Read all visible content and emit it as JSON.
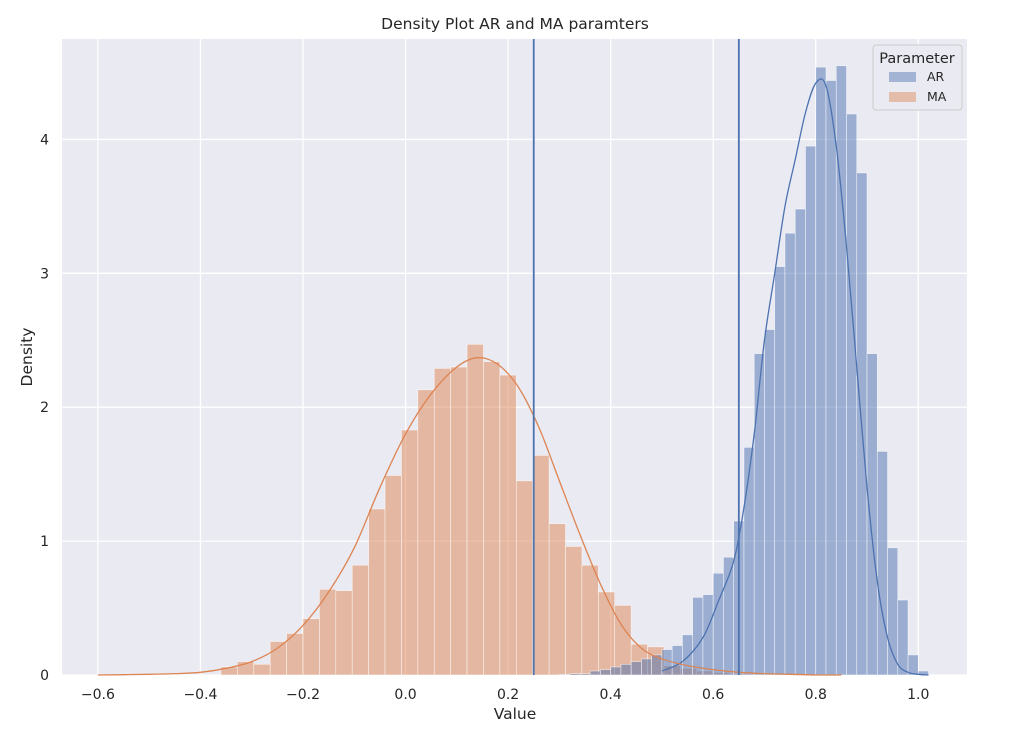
{
  "chart_data": {
    "type": "histogram",
    "title": "Density Plot AR and MA paramters",
    "xlabel": "Value",
    "ylabel": "Density",
    "xlim": [
      -0.67,
      1.095
    ],
    "ylim": [
      0,
      4.75
    ],
    "xticks": [
      -0.6,
      -0.4,
      -0.2,
      0.0,
      0.2,
      0.4,
      0.6,
      0.8,
      1.0
    ],
    "xtick_labels": [
      "−0.6",
      "−0.4",
      "−0.2",
      "0.0",
      "0.2",
      "0.4",
      "0.6",
      "0.8",
      "1.0"
    ],
    "yticks": [
      0,
      1,
      2,
      3,
      4
    ],
    "ytick_labels": [
      "0",
      "1",
      "2",
      "3",
      "4"
    ],
    "grid": true,
    "background": "#eaeaf2",
    "legend": {
      "title": "Parameter",
      "position": "top-right",
      "entries": [
        {
          "label": "AR",
          "color": "#4c72b0"
        },
        {
          "label": "MA",
          "color": "#dd8452"
        }
      ]
    },
    "vertical_lines": [
      0.25,
      0.65
    ],
    "vline_color": "#4c72b0",
    "series": [
      {
        "name": "AR",
        "color": "#4c72b0",
        "bin_edges_start": 0.3,
        "bin_width": 0.02,
        "values": [
          0.005,
          0.01,
          0.01,
          0.03,
          0.04,
          0.06,
          0.08,
          0.1,
          0.12,
          0.15,
          0.19,
          0.22,
          0.3,
          0.58,
          0.6,
          0.76,
          0.88,
          1.15,
          1.7,
          2.4,
          2.58,
          3.05,
          3.3,
          3.48,
          3.95,
          4.54,
          4.44,
          4.55,
          4.19,
          3.75,
          2.4,
          1.67,
          0.95,
          0.56,
          0.15,
          0.03
        ],
        "kde": {
          "x": [
            0.5,
            0.54,
            0.58,
            0.61,
            0.64,
            0.66,
            0.68,
            0.7,
            0.72,
            0.74,
            0.76,
            0.78,
            0.8,
            0.82,
            0.84,
            0.86,
            0.88,
            0.9,
            0.92,
            0.94,
            0.96,
            0.98,
            1.0,
            1.02
          ],
          "y": [
            0.03,
            0.1,
            0.28,
            0.55,
            0.85,
            1.25,
            1.8,
            2.5,
            3.0,
            3.5,
            3.85,
            4.2,
            4.42,
            4.4,
            3.95,
            3.2,
            2.3,
            1.4,
            0.7,
            0.28,
            0.08,
            0.02,
            0.005,
            0.0
          ]
        }
      },
      {
        "name": "MA",
        "color": "#dd8452",
        "bin_edges_start": -0.36,
        "bin_width": 0.032,
        "values": [
          0.06,
          0.1,
          0.08,
          0.25,
          0.31,
          0.42,
          0.64,
          0.63,
          0.82,
          1.24,
          1.49,
          1.83,
          2.13,
          2.29,
          2.3,
          2.47,
          2.34,
          2.24,
          1.45,
          1.64,
          1.13,
          0.96,
          0.82,
          0.62,
          0.52,
          0.23,
          0.21,
          0.07,
          0.05,
          0.03,
          0.02,
          0.01,
          0.005
        ],
        "kde": {
          "x": [
            -0.6,
            -0.5,
            -0.45,
            -0.4,
            -0.35,
            -0.3,
            -0.25,
            -0.2,
            -0.15,
            -0.1,
            -0.05,
            0.0,
            0.05,
            0.1,
            0.14,
            0.18,
            0.22,
            0.26,
            0.3,
            0.34,
            0.38,
            0.42,
            0.46,
            0.5,
            0.55,
            0.6,
            0.65,
            0.7,
            0.75,
            0.8,
            0.85
          ],
          "y": [
            0.0,
            0.005,
            0.01,
            0.02,
            0.05,
            0.1,
            0.2,
            0.37,
            0.62,
            0.95,
            1.4,
            1.8,
            2.1,
            2.3,
            2.37,
            2.32,
            2.15,
            1.85,
            1.45,
            1.05,
            0.68,
            0.38,
            0.2,
            0.12,
            0.07,
            0.04,
            0.02,
            0.01,
            0.005,
            0.0,
            0.0
          ]
        }
      }
    ]
  }
}
